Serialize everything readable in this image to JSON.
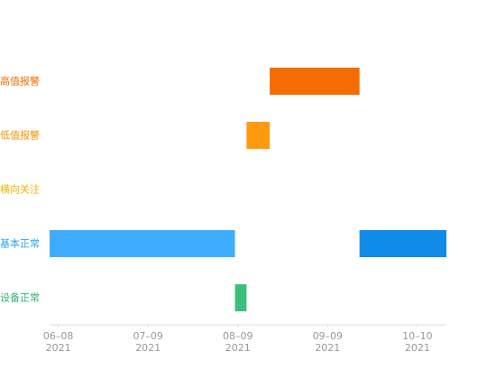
{
  "chart_data": {
    "type": "gantt",
    "rows": [
      {
        "label": "高值报警",
        "color": "#f26b00",
        "bars": [
          {
            "start": "2021-08-20",
            "end": "2021-09-20",
            "color": "#f56c00"
          }
        ]
      },
      {
        "label": "低值报警",
        "color": "#f39200",
        "bars": [
          {
            "start": "2021-08-12",
            "end": "2021-08-20",
            "color": "#ff9a0e"
          }
        ]
      },
      {
        "label": "横向关注",
        "color": "#f2b600",
        "bars": []
      },
      {
        "label": "基本正常",
        "color": "#2f9ff0",
        "bars": [
          {
            "start": "2021-06-05",
            "end": "2021-08-08",
            "color": "#3fadff"
          },
          {
            "start": "2021-09-20",
            "end": "2021-10-20",
            "color": "#118be8"
          }
        ]
      },
      {
        "label": "设备正常",
        "color": "#2fb170",
        "bars": [
          {
            "start": "2021-08-08",
            "end": "2021-08-12",
            "color": "#3dbf7c"
          }
        ]
      }
    ],
    "xlim": [
      "2021-06-05",
      "2021-10-20"
    ],
    "xticks": [
      {
        "value": "2021-06-08",
        "label": "06–08\n2021"
      },
      {
        "value": "2021-07-09",
        "label": "07–09\n2021"
      },
      {
        "value": "2021-08-09",
        "label": "08–09\n2021"
      },
      {
        "value": "2021-09-09",
        "label": "09–09\n2021"
      },
      {
        "value": "2021-10-10",
        "label": "10–10\n2021"
      }
    ]
  }
}
